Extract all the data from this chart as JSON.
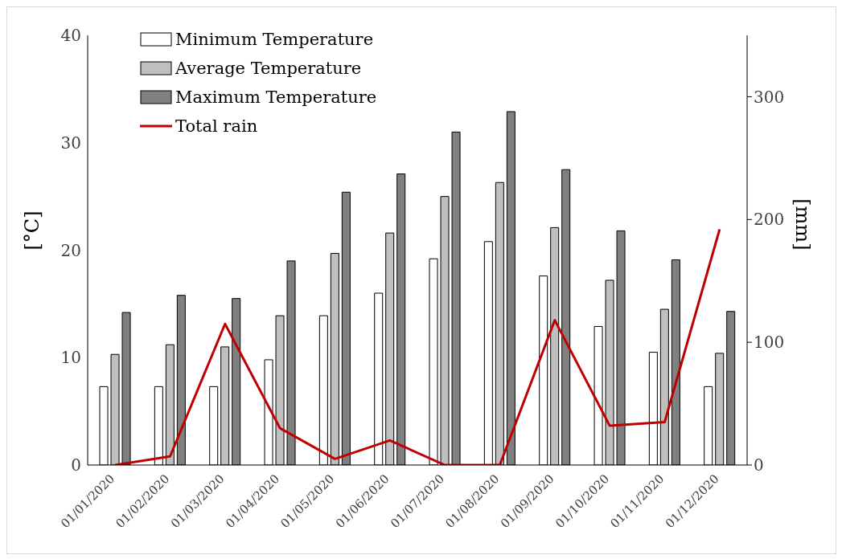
{
  "chart_data": {
    "type": "bar",
    "categories": [
      "01/01/2020",
      "01/02/2020",
      "01/03/2020",
      "01/04/2020",
      "01/05/2020",
      "01/06/2020",
      "01/07/2020",
      "01/08/2020",
      "01/09/2020",
      "01/10/2020",
      "01/11/2020",
      "01/12/2020"
    ],
    "series": [
      {
        "name": "Minimum Temperature",
        "color": "#ffffff",
        "values": [
          7.3,
          7.3,
          7.3,
          9.8,
          13.9,
          16.0,
          19.2,
          20.8,
          17.6,
          12.9,
          10.5,
          7.3
        ]
      },
      {
        "name": "Average Temperature",
        "color": "#bfbfbf",
        "values": [
          10.3,
          11.2,
          11.0,
          13.9,
          19.7,
          21.6,
          25.0,
          26.3,
          22.1,
          17.2,
          14.5,
          10.4
        ]
      },
      {
        "name": "Maximum Temperature",
        "color": "#808080",
        "values": [
          14.2,
          15.8,
          15.5,
          19.0,
          25.4,
          27.1,
          31.0,
          32.9,
          27.5,
          21.8,
          19.1,
          14.3
        ]
      },
      {
        "name": "Total rain",
        "type": "line",
        "axis": "y2",
        "color": "#c00000",
        "values": [
          0,
          7,
          115,
          30,
          5,
          20,
          0,
          0,
          118,
          32,
          35,
          192
        ]
      }
    ],
    "ylabel": "[°C]",
    "y2label": "[mm]",
    "ylim": [
      0,
      40
    ],
    "yticks": [
      0,
      10,
      20,
      30,
      40
    ],
    "y2lim": [
      0,
      350
    ],
    "y2ticks": [
      0,
      100,
      200,
      300
    ],
    "legend": "top left",
    "grid": false,
    "marker": "none"
  }
}
